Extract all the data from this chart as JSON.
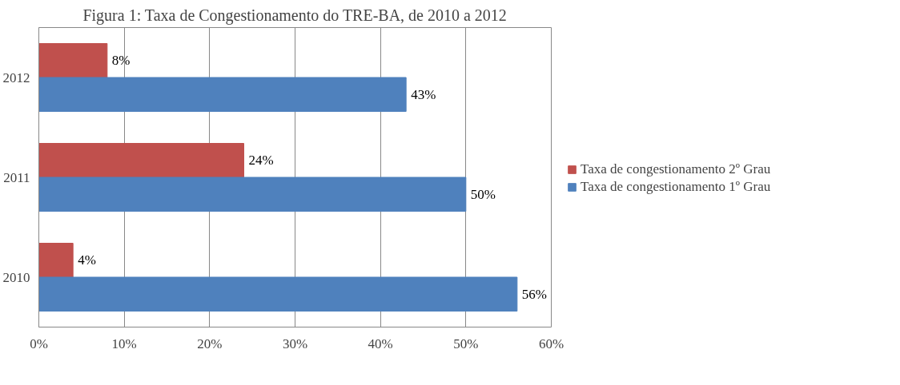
{
  "chart_data": {
    "type": "bar",
    "orientation": "horizontal",
    "title": "Figura 1: Taxa de Congestionamento do TRE-BA, de 2010 a 2012",
    "categories": [
      "2012",
      "2011",
      "2010"
    ],
    "series": [
      {
        "name": "Taxa de congestionamento 2º Grau",
        "color": "#c0504d",
        "values": [
          8,
          24,
          4
        ],
        "value_labels": [
          "8%",
          "24%",
          "4%"
        ]
      },
      {
        "name": "Taxa de congestionamento 1º Grau",
        "color": "#4f81bd",
        "values": [
          43,
          50,
          56
        ],
        "value_labels": [
          "43%",
          "50%",
          "56%"
        ]
      }
    ],
    "xlim": [
      0,
      60
    ],
    "xticks": [
      {
        "value": 0,
        "label": "0%"
      },
      {
        "value": 10,
        "label": "10%"
      },
      {
        "value": 20,
        "label": "20%"
      },
      {
        "value": 30,
        "label": "30%"
      },
      {
        "value": 40,
        "label": "40%"
      },
      {
        "value": 50,
        "label": "50%"
      },
      {
        "value": 60,
        "label": "60%"
      }
    ],
    "grid": "x",
    "legend": "right"
  }
}
